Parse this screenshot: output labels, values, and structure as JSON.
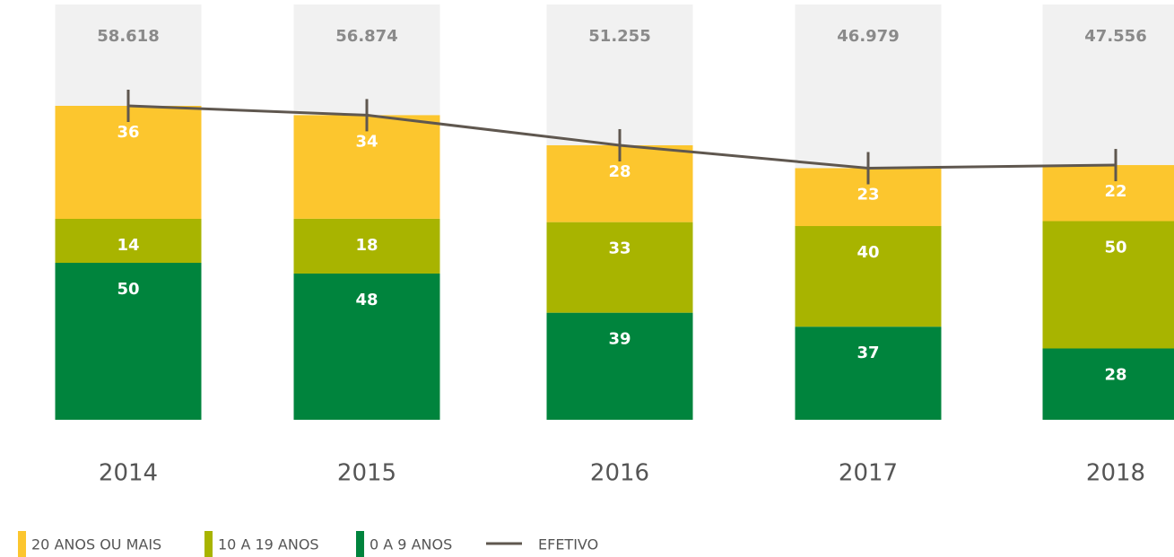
{
  "chart_data": {
    "type": "bar",
    "stacked": true,
    "categories": [
      "2014",
      "2015",
      "2016",
      "2017",
      "2018"
    ],
    "series": [
      {
        "name": "20 ANOS OU MAIS",
        "color": "#fcc62e",
        "values": [
          36,
          34,
          28,
          23,
          22
        ]
      },
      {
        "name": "10 A 19 ANOS",
        "color": "#a8b400",
        "values": [
          14,
          18,
          33,
          40,
          50
        ]
      },
      {
        "name": "0 A 9 ANOS",
        "color": "#00843d",
        "values": [
          50,
          48,
          39,
          37,
          28
        ]
      },
      {
        "name": "EFETIVO",
        "type": "line",
        "color": "#5f574f",
        "values": [
          58618,
          56874,
          51255,
          46979,
          47556
        ],
        "value_labels": [
          "58.618",
          "56.874",
          "51.255",
          "46.979",
          "47.556"
        ]
      }
    ]
  }
}
